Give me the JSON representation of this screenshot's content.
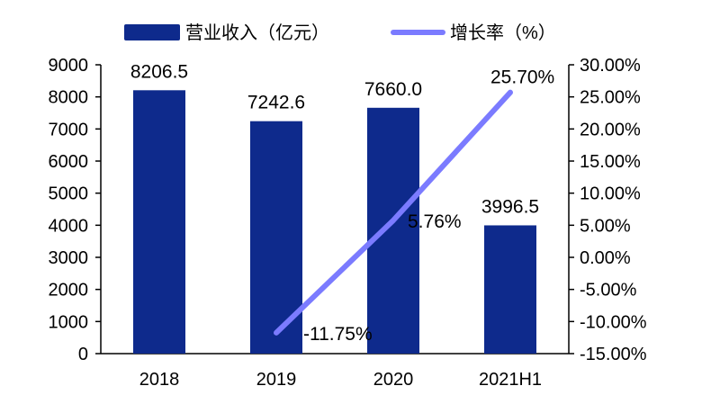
{
  "chart_data": {
    "type": "bar+line",
    "categories": [
      "2018",
      "2019",
      "2020",
      "2021H1"
    ],
    "series": [
      {
        "name": "营业收入（亿元）",
        "type": "bar",
        "axis": "left",
        "values": [
          8206.5,
          7242.6,
          7660.0,
          3996.5
        ],
        "labels": [
          "8206.5",
          "7242.6",
          "7660.0",
          "3996.5"
        ],
        "color": "#0e2a8c"
      },
      {
        "name": "增长率（%）",
        "type": "line",
        "axis": "right",
        "values": [
          null,
          -11.75,
          5.76,
          25.7
        ],
        "labels": [
          "",
          "-11.75%",
          "5.76%",
          "25.70%"
        ],
        "color": "#7b7bff"
      }
    ],
    "left_axis": {
      "ylim": [
        0,
        9000
      ],
      "ticks": [
        "0",
        "1000",
        "2000",
        "3000",
        "4000",
        "5000",
        "6000",
        "7000",
        "8000",
        "9000"
      ]
    },
    "right_axis": {
      "ylim": [
        -15,
        30
      ],
      "ticks": [
        "-15.00%",
        "-10.00%",
        "-5.00%",
        "0.00%",
        "5.00%",
        "10.00%",
        "15.00%",
        "20.00%",
        "25.00%",
        "30.00%"
      ]
    },
    "legend_placement": "top",
    "grid": false
  }
}
